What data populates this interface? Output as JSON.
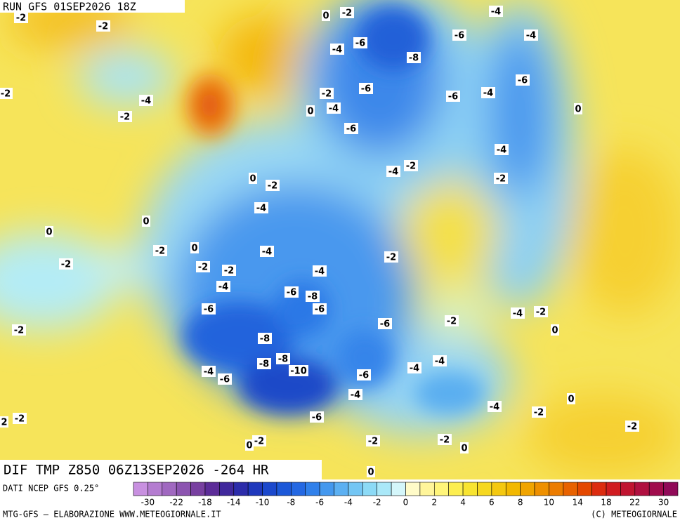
{
  "header": {
    "run": "RUN GFS 01SEP2026 18Z"
  },
  "title": "DIF TMP Z850 06Z13SEP2026 -264 HR",
  "source": "DATI NCEP GFS 0.25°",
  "credits": "MTG-GFS — ELABORAZIONE WWW.METEOGIORNALE.IT",
  "copyright": "(C) METEOGIORNALE",
  "colorbar": {
    "colors": [
      "#c890e0",
      "#b47cd0",
      "#a068c0",
      "#8c54b0",
      "#7840a0",
      "#5c2c98",
      "#40289c",
      "#2c2caa",
      "#1f38bc",
      "#1b48cc",
      "#1c58d8",
      "#2468e2",
      "#3080ea",
      "#4498ee",
      "#5cb0f2",
      "#74c6f4",
      "#8cdaf6",
      "#aae8f8",
      "#d4f6fa",
      "#fffbc8",
      "#fff59a",
      "#fff57a",
      "#fcee50",
      "#f8e430",
      "#f6d820",
      "#f4c810",
      "#f2b800",
      "#f0a400",
      "#ee9000",
      "#ec7c00",
      "#e86200",
      "#e44800",
      "#dc2c10",
      "#d01c20",
      "#c01430",
      "#b01040",
      "#a00c4c",
      "#900a58"
    ],
    "ticks": [
      -30,
      -22,
      -18,
      -14,
      -10,
      -8,
      -6,
      -4,
      -2,
      0,
      2,
      4,
      6,
      8,
      10,
      14,
      18,
      22,
      30
    ]
  },
  "contour_labels": [
    -2,
    -2,
    0,
    -2,
    -4,
    -6,
    -4,
    -6,
    -4,
    -8,
    -2,
    -4,
    -2,
    -2,
    -6,
    -6,
    -4,
    -6,
    0,
    -4,
    0,
    -6,
    -4,
    -4,
    -2,
    -2,
    0,
    -2,
    -4,
    0,
    0,
    -2,
    0,
    -4,
    -2,
    -2,
    -2,
    -2,
    -4,
    -4,
    -6,
    -8,
    -6,
    -6,
    -4,
    -2,
    -2,
    -6,
    -2,
    0,
    -8,
    -8,
    -8,
    -10,
    -4,
    -6,
    -6,
    -4,
    -4,
    -4,
    0,
    -4,
    -2,
    -6,
    -2,
    2,
    -2,
    0,
    -2,
    -2,
    -2,
    0,
    0
  ]
}
